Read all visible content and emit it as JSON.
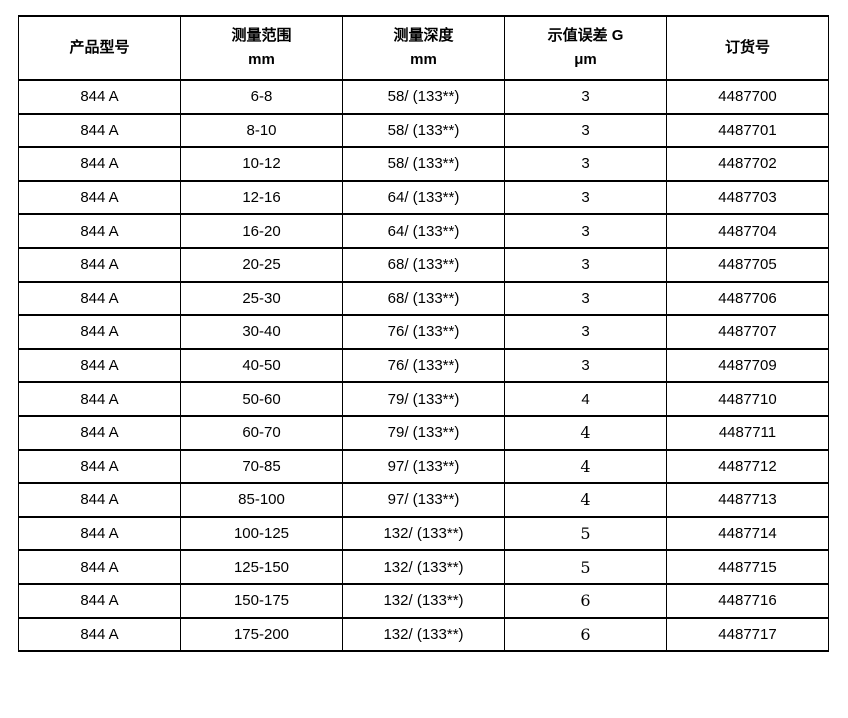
{
  "page": {
    "background": "#ffffff",
    "border_color": "#000000",
    "text_color": "#000000"
  },
  "table": {
    "columns": [
      {
        "id": "model",
        "title": "产品型号",
        "unit": ""
      },
      {
        "id": "range",
        "title": "测量范围",
        "unit": "mm"
      },
      {
        "id": "depth",
        "title": "测量深度",
        "unit": "mm"
      },
      {
        "id": "error",
        "title": "示值误差 G",
        "unit": "μm"
      },
      {
        "id": "order",
        "title": "订货号",
        "unit": ""
      }
    ],
    "rows": [
      {
        "model": "844 A",
        "range": "6-8",
        "depth": "58/ (133**)",
        "error": "3",
        "order": "4487700",
        "error_font": "sans"
      },
      {
        "model": "844 A",
        "range": "8-10",
        "depth": "58/ (133**)",
        "error": "3",
        "order": "4487701",
        "error_font": "sans"
      },
      {
        "model": "844 A",
        "range": "10-12",
        "depth": "58/ (133**)",
        "error": "3",
        "order": "4487702",
        "error_font": "sans"
      },
      {
        "model": "844 A",
        "range": "12-16",
        "depth": "64/ (133**)",
        "error": "3",
        "order": "4487703",
        "error_font": "sans"
      },
      {
        "model": "844 A",
        "range": "16-20",
        "depth": "64/ (133**)",
        "error": "3",
        "order": "4487704",
        "error_font": "sans"
      },
      {
        "model": "844 A",
        "range": "20-25",
        "depth": "68/ (133**)",
        "error": "3",
        "order": "4487705",
        "error_font": "sans"
      },
      {
        "model": "844 A",
        "range": "25-30",
        "depth": "68/ (133**)",
        "error": "3",
        "order": "4487706",
        "error_font": "sans"
      },
      {
        "model": "844 A",
        "range": "30-40",
        "depth": "76/ (133**)",
        "error": "3",
        "order": "4487707",
        "error_font": "sans"
      },
      {
        "model": "844 A",
        "range": "40-50",
        "depth": "76/ (133**)",
        "error": "3",
        "order": "4487709",
        "error_font": "sans"
      },
      {
        "model": "844 A",
        "range": "50-60",
        "depth": "79/ (133**)",
        "error": "4",
        "order": "4487710",
        "error_font": "sans"
      },
      {
        "model": "844 A",
        "range": "60-70",
        "depth": "79/ (133**)",
        "error": "4",
        "order": "4487711",
        "error_font": "serif"
      },
      {
        "model": "844 A",
        "range": "70-85",
        "depth": "97/ (133**)",
        "error": "4",
        "order": "4487712",
        "error_font": "serif"
      },
      {
        "model": "844 A",
        "range": "85-100",
        "depth": "97/ (133**)",
        "error": "4",
        "order": "4487713",
        "error_font": "serif"
      },
      {
        "model": "844 A",
        "range": "100-125",
        "depth": "132/ (133**)",
        "error": "5",
        "order": "4487714",
        "error_font": "serif"
      },
      {
        "model": "844 A",
        "range": "125-150",
        "depth": "132/ (133**)",
        "error": "5",
        "order": "4487715",
        "error_font": "serif"
      },
      {
        "model": "844 A",
        "range": "150-175",
        "depth": "132/ (133**)",
        "error": "6",
        "order": "4487716",
        "error_font": "serif"
      },
      {
        "model": "844 A",
        "range": "175-200",
        "depth": "132/ (133**)",
        "error": "6",
        "order": "4487717",
        "error_font": "serif"
      }
    ]
  }
}
